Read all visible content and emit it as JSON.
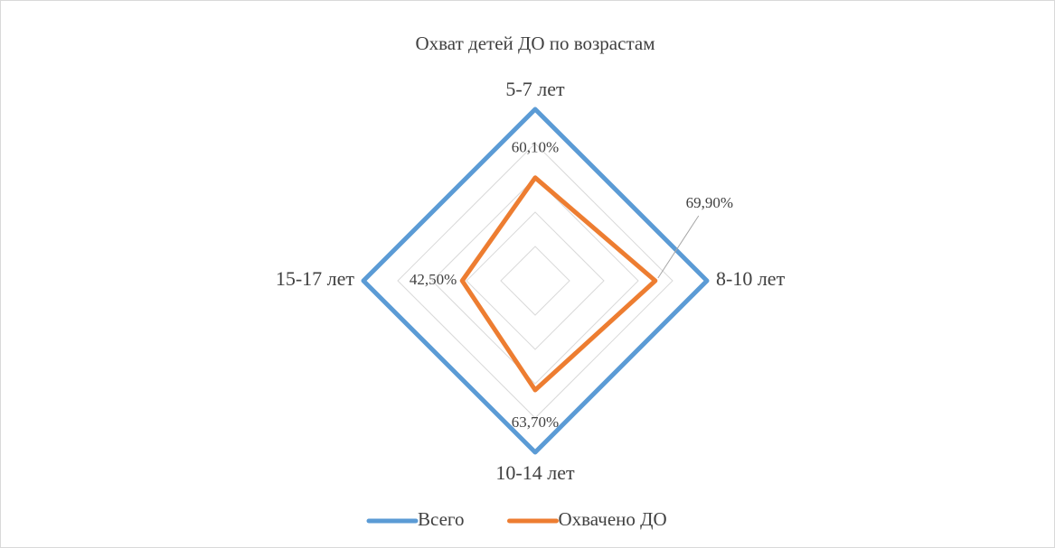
{
  "chart_data": {
    "type": "radar",
    "title": "Охват детей ДО по возрастам",
    "categories": [
      "5-7 лет",
      "8-10 лет",
      "10-14 лет",
      "15-17 лет"
    ],
    "series": [
      {
        "name": "Всего",
        "color": "#5b9bd5",
        "values": [
          100,
          100,
          100,
          100
        ]
      },
      {
        "name": "Охвачено ДО",
        "color": "#ed7d31",
        "values": [
          60.1,
          69.9,
          63.7,
          42.5
        ],
        "value_labels": [
          "60,10%",
          "69,90%",
          "63,70%",
          "42,50%"
        ]
      }
    ],
    "rlim": [
      0,
      100
    ],
    "rticks": [
      20,
      40,
      60,
      80,
      100
    ],
    "grid": true,
    "legend": "bottom"
  }
}
